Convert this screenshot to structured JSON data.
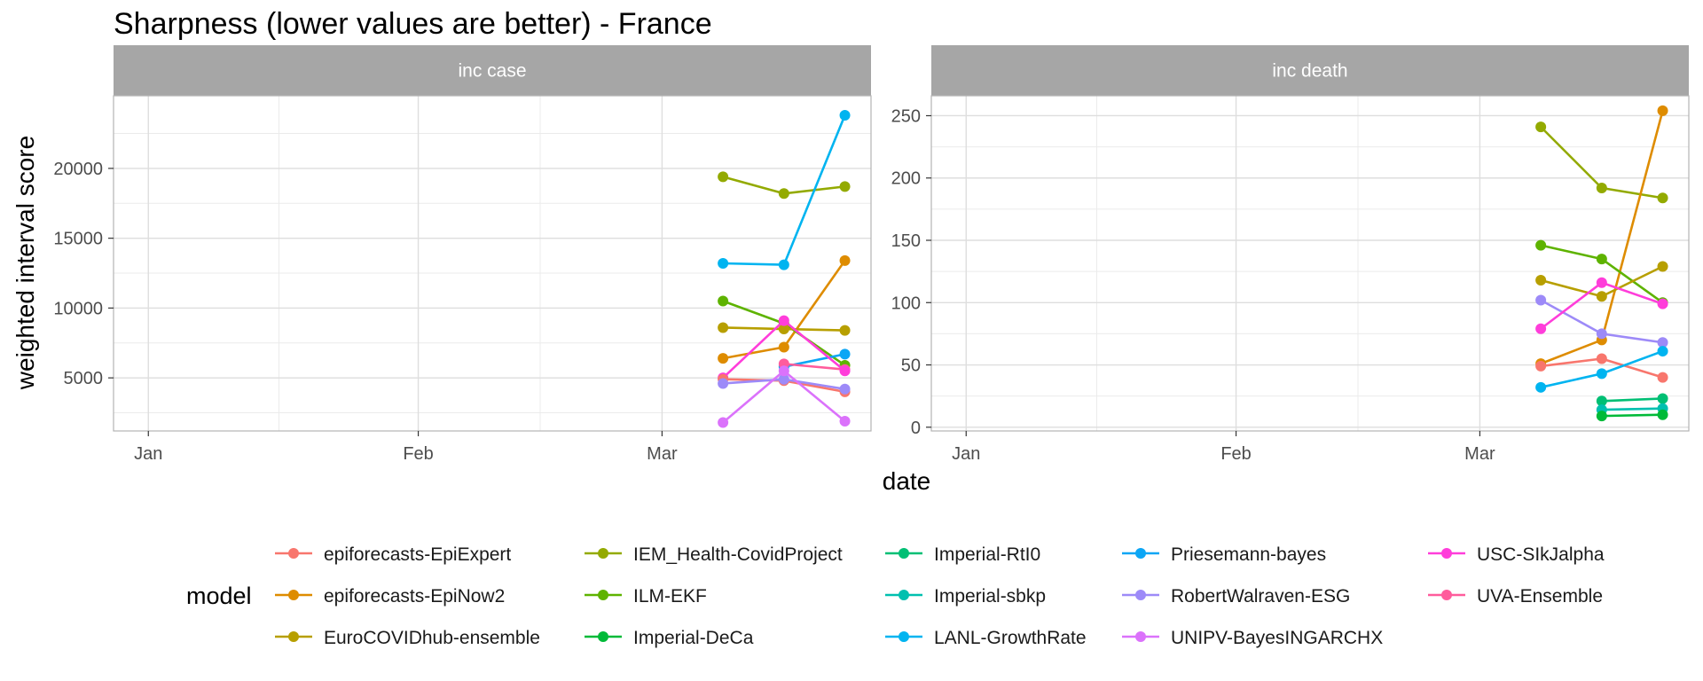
{
  "chart_data": {
    "type": "line",
    "title": "Sharpness (lower values are better) - France",
    "xlabel": "date",
    "ylabel": "weighted interval score",
    "legend_title": "model",
    "legend_position": "bottom",
    "grid": true,
    "x_tick_labels": [
      "Jan",
      "Feb",
      "Mar"
    ],
    "x": [
      "2021-03-08",
      "2021-03-15",
      "2021-03-22"
    ],
    "models": [
      {
        "name": "epiforecasts-EpiExpert",
        "color": "#F8766D"
      },
      {
        "name": "epiforecasts-EpiNow2",
        "color": "#DE8C00"
      },
      {
        "name": "EuroCOVIDhub-ensemble",
        "color": "#B79F00"
      },
      {
        "name": "IEM_Health-CovidProject",
        "color": "#93AA00"
      },
      {
        "name": "ILM-EKF",
        "color": "#5EB300"
      },
      {
        "name": "Imperial-DeCa",
        "color": "#00BA38"
      },
      {
        "name": "Imperial-RtI0",
        "color": "#00BF74"
      },
      {
        "name": "Imperial-sbkp",
        "color": "#00C0AF"
      },
      {
        "name": "LANL-GrowthRate",
        "color": "#00B4F0"
      },
      {
        "name": "Priesemann-bayes",
        "color": "#0CA6F5"
      },
      {
        "name": "RobertWalraven-ESG",
        "color": "#9D8AF8"
      },
      {
        "name": "UNIPV-BayesINGARCHX",
        "color": "#DB72FB"
      },
      {
        "name": "USC-SIkJalpha",
        "color": "#FF3DDA"
      },
      {
        "name": "UVA-Ensemble",
        "color": "#FF5C9C"
      }
    ],
    "panels": [
      {
        "label": "inc case",
        "y_ticks": [
          5000,
          10000,
          15000,
          20000
        ],
        "y_tick_labels": [
          "5000",
          "10000",
          "15000",
          "20000"
        ],
        "series": [
          {
            "name": "IEM_Health-CovidProject",
            "values": [
              19400,
              18200,
              18700
            ]
          },
          {
            "name": "LANL-GrowthRate",
            "values": [
              13200,
              13100,
              23800
            ]
          },
          {
            "name": "epiforecasts-EpiNow2",
            "values": [
              6400,
              7200,
              13400
            ]
          },
          {
            "name": "ILM-EKF",
            "values": [
              10500,
              8900,
              5900
            ]
          },
          {
            "name": "EuroCOVIDhub-ensemble",
            "values": [
              8600,
              8500,
              8400
            ]
          },
          {
            "name": "Priesemann-bayes",
            "values": [
              null,
              5800,
              6700
            ]
          },
          {
            "name": "UVA-Ensemble",
            "values": [
              null,
              6000,
              5600
            ]
          },
          {
            "name": "USC-SIkJalpha",
            "values": [
              5000,
              9100,
              5500
            ]
          },
          {
            "name": "epiforecasts-EpiExpert",
            "values": [
              4900,
              4800,
              4000
            ]
          },
          {
            "name": "RobertWalraven-ESG",
            "values": [
              4600,
              4900,
              4200
            ]
          },
          {
            "name": "UNIPV-BayesINGARCHX",
            "values": [
              1800,
              5500,
              1900
            ]
          }
        ]
      },
      {
        "label": "inc death",
        "y_ticks": [
          0,
          50,
          100,
          150,
          200,
          250
        ],
        "y_tick_labels": [
          "0",
          "50",
          "100",
          "150",
          "200",
          "250"
        ],
        "series": [
          {
            "name": "IEM_Health-CovidProject",
            "values": [
              241,
              192,
              184
            ]
          },
          {
            "name": "epiforecasts-EpiNow2",
            "values": [
              51,
              70,
              254
            ]
          },
          {
            "name": "ILM-EKF",
            "values": [
              146,
              135,
              100
            ]
          },
          {
            "name": "EuroCOVIDhub-ensemble",
            "values": [
              118,
              105,
              129
            ]
          },
          {
            "name": "RobertWalraven-ESG",
            "values": [
              102,
              75,
              68
            ]
          },
          {
            "name": "USC-SIkJalpha",
            "values": [
              79,
              116,
              99
            ]
          },
          {
            "name": "epiforecasts-EpiExpert",
            "values": [
              49,
              55,
              40
            ]
          },
          {
            "name": "LANL-GrowthRate",
            "values": [
              32,
              43,
              61
            ]
          },
          {
            "name": "Imperial-RtI0",
            "values": [
              null,
              21,
              23
            ]
          },
          {
            "name": "Imperial-sbkp",
            "values": [
              null,
              14,
              15
            ]
          },
          {
            "name": "Imperial-DeCa",
            "values": [
              null,
              9,
              10
            ]
          }
        ]
      }
    ]
  }
}
